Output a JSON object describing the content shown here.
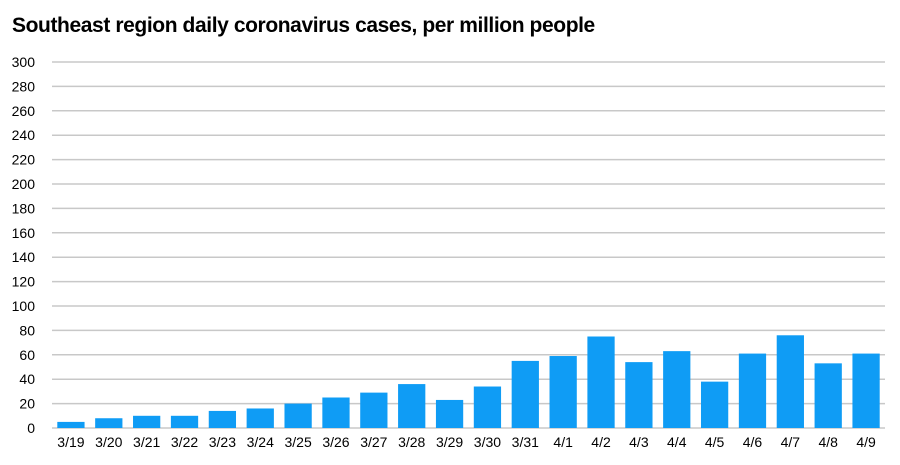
{
  "chart_data": {
    "type": "bar",
    "title": "Southeast region daily coronavirus cases, per million people",
    "xlabel": "",
    "ylabel": "",
    "categories": [
      "3/19",
      "3/20",
      "3/21",
      "3/22",
      "3/23",
      "3/24",
      "3/25",
      "3/26",
      "3/27",
      "3/28",
      "3/29",
      "3/30",
      "3/31",
      "4/1",
      "4/2",
      "4/3",
      "4/4",
      "4/5",
      "4/6",
      "4/7",
      "4/8",
      "4/9"
    ],
    "values": [
      5,
      8,
      10,
      10,
      14,
      16,
      20,
      25,
      29,
      36,
      23,
      34,
      55,
      59,
      75,
      54,
      63,
      38,
      61,
      76,
      53,
      61
    ],
    "ylim": [
      0,
      300
    ],
    "yticks": [
      "0",
      "20",
      "40",
      "60",
      "80",
      "100",
      "120",
      "140",
      "160",
      "180",
      "200",
      "220",
      "240",
      "260",
      "280",
      "300"
    ],
    "grid": true,
    "legend": "none",
    "bar_color": "#0f9cf5",
    "grid_color": "#c8c8c8"
  }
}
